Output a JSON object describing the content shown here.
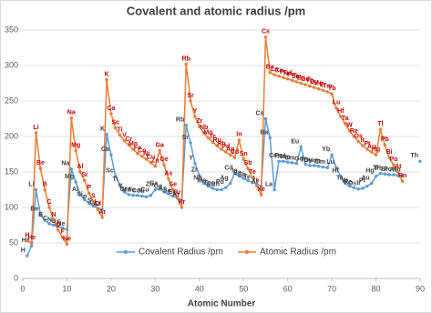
{
  "chart_data": {
    "type": "line",
    "title": "Covalent and atomic radius /pm",
    "x_label": "Atomic Number",
    "x": [
      1,
      2,
      3,
      4,
      5,
      6,
      7,
      8,
      9,
      10,
      11,
      12,
      13,
      14,
      15,
      16,
      17,
      18,
      19,
      20,
      21,
      22,
      23,
      24,
      25,
      26,
      27,
      28,
      29,
      30,
      31,
      32,
      33,
      34,
      35,
      36,
      37,
      38,
      39,
      40,
      41,
      42,
      43,
      44,
      45,
      46,
      47,
      48,
      49,
      50,
      51,
      52,
      53,
      54,
      55,
      56,
      57,
      58,
      59,
      60,
      61,
      62,
      63,
      64,
      65,
      66,
      67,
      68,
      69,
      70,
      71,
      72,
      73,
      74,
      75,
      76,
      77,
      78,
      79,
      80,
      81,
      82,
      83,
      84,
      85,
      86,
      87,
      88,
      89,
      90
    ],
    "elements": [
      "H",
      "He",
      "Li",
      "Be",
      "B",
      "C",
      "N",
      "O",
      "F",
      "Ne",
      "Na",
      "Mg",
      "Al",
      "Si",
      "P",
      "S",
      "Cl",
      "Ar",
      "K",
      "Ca",
      "Sc",
      "Ti",
      "V",
      "Cr",
      "Mn",
      "Fe",
      "Co",
      "Ni",
      "Cu",
      "Zn",
      "Ga",
      "Ge",
      "As",
      "Se",
      "Br",
      "Kr",
      "Rb",
      "Sr",
      "Y",
      "Zr",
      "Nb",
      "Mo",
      "Tc",
      "Ru",
      "Rh",
      "Pd",
      "Ag",
      "Cd",
      "In",
      "Sn",
      "Sb",
      "Te",
      "I",
      "Xe",
      "Cs",
      "Ba",
      "La",
      "Ce",
      "Pr",
      "Nd",
      "Pm",
      "Sm",
      "Eu",
      "Gd",
      "Tb",
      "Dy",
      "Ho",
      "Er",
      "Tm",
      "Yb",
      "Lu",
      "Hf",
      "Ta",
      "W",
      "Re",
      "Os",
      "Ir",
      "Pt",
      "Au",
      "Hg",
      "Tl",
      "Pb",
      "Bi",
      "Po",
      "At",
      "Rn",
      null,
      null,
      null,
      "Th"
    ],
    "series": [
      {
        "name": "Covalent Radius /pm",
        "color": "#5b9bd5",
        "label_color": "#404040",
        "values": [
          32,
          46,
          125,
          90,
          82,
          77,
          75,
          73,
          71,
          69,
          154,
          136,
          118,
          111,
          106,
          102,
          99,
          97,
          203,
          174,
          144,
          132,
          122,
          118,
          117,
          117,
          116,
          115,
          117,
          125,
          126,
          122,
          119,
          116,
          114,
          110,
          216,
          191,
          162,
          145,
          134,
          130,
          127,
          125,
          125,
          128,
          134,
          148,
          144,
          141,
          138,
          135,
          133,
          130,
          225,
          198,
          125,
          165,
          165,
          164,
          163,
          162,
          185,
          161,
          159,
          159,
          158,
          157,
          156,
          174,
          156,
          144,
          134,
          130,
          128,
          126,
          127,
          130,
          134,
          144,
          148,
          147,
          146,
          146,
          145,
          145,
          null,
          null,
          null,
          165
        ]
      },
      {
        "name": "Atomic Radius /pm",
        "color": "#ed7d31",
        "label_color": "#c00000",
        "values": [
          53,
          50,
          205,
          155,
          125,
          100,
          82,
          68,
          58,
          48,
          226,
          180,
          150,
          138,
          120,
          108,
          97,
          86,
          280,
          232,
          212,
          202,
          194,
          188,
          182,
          176,
          172,
          168,
          163,
          158,
          180,
          160,
          140,
          125,
          113,
          100,
          302,
          250,
          228,
          214,
          205,
          198,
          192,
          187,
          182,
          178,
          174,
          170,
          195,
          168,
          155,
          142,
          130,
          118,
          340,
          290,
          287,
          285,
          283,
          281,
          279,
          277,
          275,
          273,
          271,
          269,
          267,
          265,
          263,
          260,
          240,
          228,
          218,
          208,
          200,
          193,
          187,
          182,
          178,
          174,
          210,
          188,
          170,
          160,
          150,
          137,
          null,
          null,
          null,
          null
        ]
      }
    ],
    "xlim": [
      0,
      90
    ],
    "xticks": [
      0,
      10,
      20,
      30,
      40,
      50,
      60,
      70,
      80,
      90
    ],
    "ylim": [
      0,
      350
    ],
    "yticks": [
      0,
      50,
      100,
      150,
      200,
      250,
      300,
      350
    ],
    "grid": true,
    "legend": "bottom"
  }
}
